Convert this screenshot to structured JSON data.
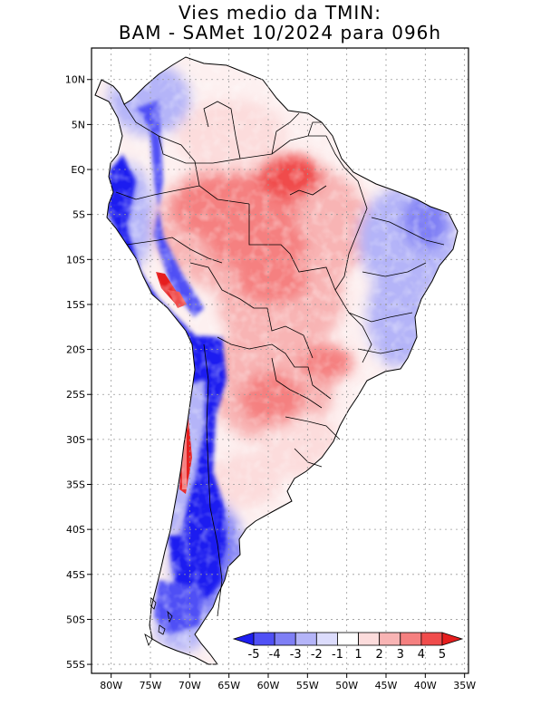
{
  "title": {
    "line1": "Vies medio da TMIN:",
    "line2": "BAM - SAMet 10/2024  para 096h"
  },
  "axes": {
    "lat_labels": [
      "10N",
      "5N",
      "EQ",
      "5S",
      "10S",
      "15S",
      "20S",
      "25S",
      "30S",
      "35S",
      "40S",
      "45S",
      "50S",
      "55S"
    ],
    "lat_values": [
      10,
      5,
      0,
      -5,
      -10,
      -15,
      -20,
      -25,
      -30,
      -35,
      -40,
      -45,
      -50,
      -55
    ],
    "lon_labels": [
      "80W",
      "75W",
      "70W",
      "65W",
      "60W",
      "55W",
      "50W",
      "45W",
      "40W",
      "35W"
    ],
    "lon_values": [
      -80,
      -75,
      -70,
      -65,
      -60,
      -55,
      -50,
      -45,
      -40,
      -35
    ],
    "lon_range": [
      -82.5,
      -34.5
    ],
    "lat_range": [
      -56,
      13.5
    ]
  },
  "colorbar": {
    "labels": [
      "-5",
      "-4",
      "-3",
      "-2",
      "-1",
      "1",
      "2",
      "3",
      "4",
      "5"
    ],
    "colors": [
      "#1e1ef0",
      "#5050f5",
      "#7f7ff5",
      "#b4b4f8",
      "#dcdcfc",
      "#ffffff",
      "#fcdcdc",
      "#f8b4b4",
      "#f58080",
      "#f04c4c",
      "#e61e1e"
    ]
  }
}
